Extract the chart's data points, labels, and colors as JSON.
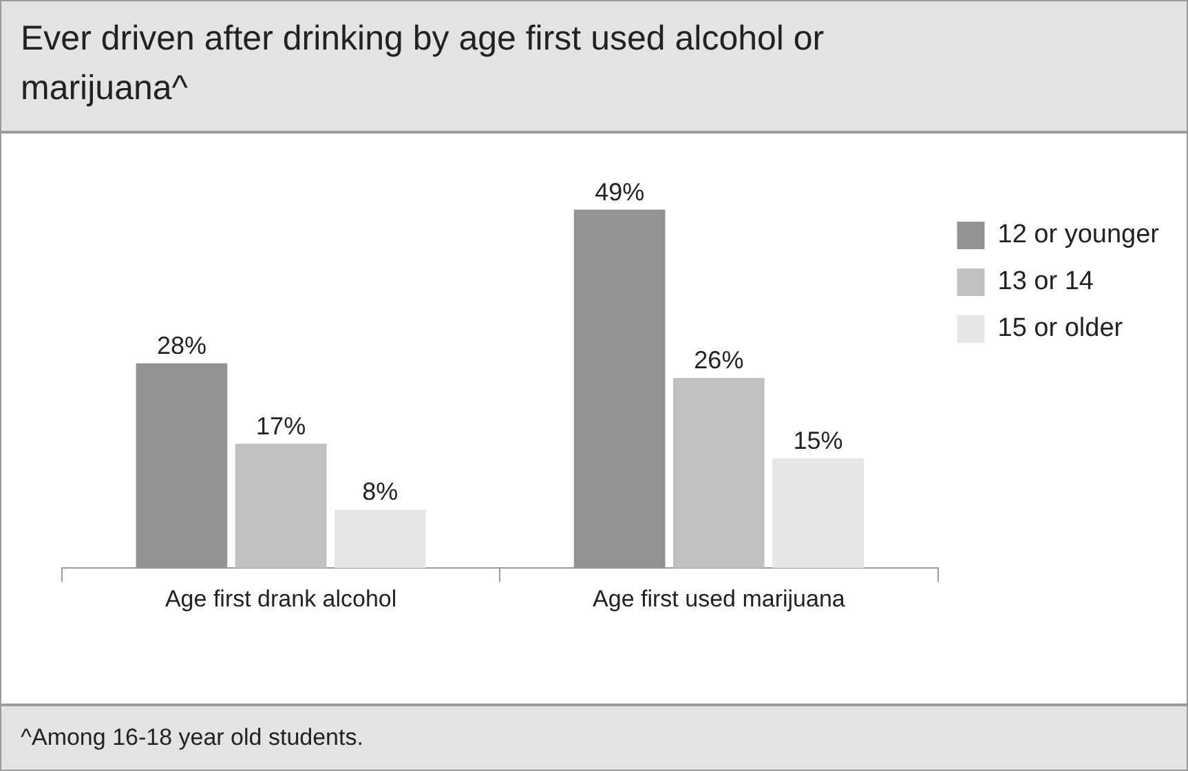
{
  "chart_data": {
    "type": "bar",
    "title": "Ever driven after drinking by age first used alcohol or marijuana^",
    "categories": [
      "Age first drank alcohol",
      "Age first used marijuana"
    ],
    "series": [
      {
        "name": "12 or younger",
        "color": "#939393",
        "values": [
          28,
          49
        ],
        "value_labels": [
          "28%",
          "49%"
        ]
      },
      {
        "name": "13 or 14",
        "color": "#c0c0c0",
        "values": [
          17,
          26
        ],
        "value_labels": [
          "17%",
          "26%"
        ]
      },
      {
        "name": "15 or older",
        "color": "#e6e6e6",
        "values": [
          8,
          15
        ],
        "value_labels": [
          "8%",
          "15%"
        ]
      }
    ],
    "tick_labels": "x",
    "grid": false,
    "legend": "top right",
    "annotations": [
      "^Among 16-18 year old students."
    ]
  }
}
